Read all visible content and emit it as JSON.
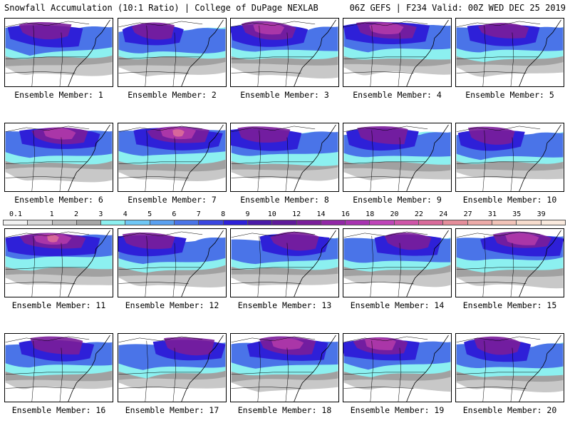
{
  "header": {
    "left_title": "Snowfall Accumulation (10:1 Ratio) | College of DuPage NEXLAB",
    "right_title": "06Z GEFS | F234 Valid: 00Z WED DEC 25 2019"
  },
  "member_label_prefix": "Ensemble Member:",
  "members": [
    {
      "id": "1",
      "label": "Ensemble Member: 1",
      "intensity": 0.6
    },
    {
      "id": "2",
      "label": "Ensemble Member: 2",
      "intensity": 0.35
    },
    {
      "id": "3",
      "label": "Ensemble Member: 3",
      "intensity": 0.65
    },
    {
      "id": "4",
      "label": "Ensemble Member: 4",
      "intensity": 0.8
    },
    {
      "id": "5",
      "label": "Ensemble Member: 5",
      "intensity": 0.55
    },
    {
      "id": "6",
      "label": "Ensemble Member: 6",
      "intensity": 0.7
    },
    {
      "id": "7",
      "label": "Ensemble Member: 7",
      "intensity": 0.85
    },
    {
      "id": "8",
      "label": "Ensemble Member: 8",
      "intensity": 0.6
    },
    {
      "id": "9",
      "label": "Ensemble Member: 9",
      "intensity": 0.55
    },
    {
      "id": "10",
      "label": "Ensemble Member: 10",
      "intensity": 0.45
    },
    {
      "id": "11",
      "label": "Ensemble Member: 11",
      "intensity": 0.95
    },
    {
      "id": "12",
      "label": "Ensemble Member: 12",
      "intensity": 0.6
    },
    {
      "id": "13",
      "label": "Ensemble Member: 13",
      "intensity": 0.5
    },
    {
      "id": "14",
      "label": "Ensemble Member: 14",
      "intensity": 0.45
    },
    {
      "id": "15",
      "label": "Ensemble Member: 15",
      "intensity": 0.75
    },
    {
      "id": "16",
      "label": "Ensemble Member: 16",
      "intensity": 0.6
    },
    {
      "id": "17",
      "label": "Ensemble Member: 17",
      "intensity": 0.55
    },
    {
      "id": "18",
      "label": "Ensemble Member: 18",
      "intensity": 0.7
    },
    {
      "id": "19",
      "label": "Ensemble Member: 19",
      "intensity": 0.65
    },
    {
      "id": "20",
      "label": "Ensemble Member: 20",
      "intensity": 0.45
    }
  ],
  "colorbar": {
    "ticks": [
      "0.1",
      "1",
      "2",
      "3",
      "4",
      "5",
      "6",
      "7",
      "8",
      "9",
      "10",
      "12",
      "14",
      "16",
      "18",
      "20",
      "22",
      "24",
      "27",
      "31",
      "35",
      "39"
    ],
    "colors": [
      "#f2f2f2",
      "#d9d9d9",
      "#bfbfbf",
      "#a6a6a6",
      "#8cf0f0",
      "#6fc7f5",
      "#5aa0f0",
      "#4a74e8",
      "#3a46e0",
      "#2e20d8",
      "#4a1aa8",
      "#5f1a9a",
      "#7a1d9a",
      "#9227a6",
      "#a833b0",
      "#bf44b8",
      "#cf55a8",
      "#d96a9a",
      "#e58d9a",
      "#ecaaa8",
      "#f2c3b8",
      "#f7dccd",
      "#faeade"
    ]
  },
  "map_colors": {
    "gray": "#9a9a9a",
    "light": "#c8c8c8",
    "cyan": "#8cf0f0",
    "blue": "#4a74e8",
    "deepblue": "#2e20d8",
    "purple": "#7a1d9a",
    "magenta": "#b03aa8",
    "pink": "#d96a9a",
    "background": "#ffffff",
    "border": "#000000"
  }
}
